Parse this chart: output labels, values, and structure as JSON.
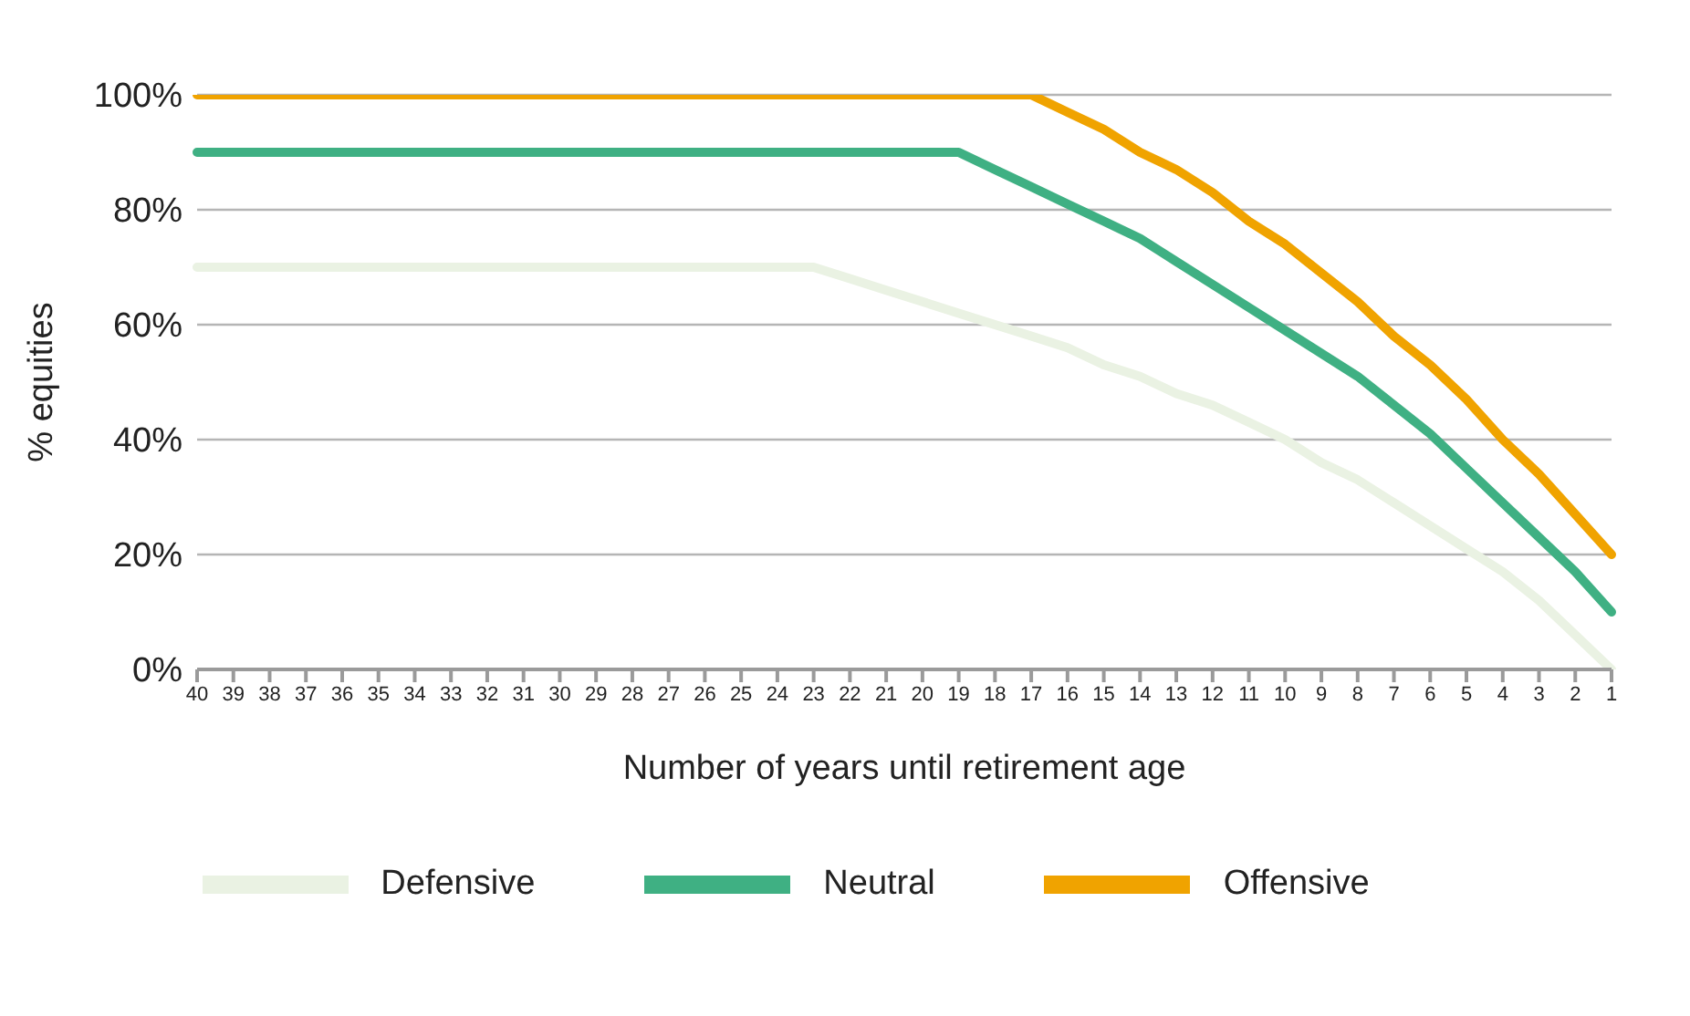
{
  "chart_data": {
    "type": "line",
    "xlabel": "Number of years until retirement age",
    "ylabel": "% equities",
    "categories": [
      "40",
      "39",
      "38",
      "37",
      "36",
      "35",
      "34",
      "33",
      "32",
      "31",
      "30",
      "29",
      "28",
      "27",
      "26",
      "25",
      "24",
      "23",
      "22",
      "21",
      "20",
      "19",
      "18",
      "17",
      "16",
      "15",
      "14",
      "13",
      "12",
      "11",
      "10",
      "9",
      "8",
      "7",
      "6",
      "5",
      "4",
      "3",
      "2",
      "1"
    ],
    "series": [
      {
        "name": "Offensive",
        "color": "#f0a300",
        "values": [
          100,
          100,
          100,
          100,
          100,
          100,
          100,
          100,
          100,
          100,
          100,
          100,
          100,
          100,
          100,
          100,
          100,
          100,
          100,
          100,
          100,
          100,
          100,
          100,
          97,
          94,
          90,
          87,
          83,
          78,
          74,
          69,
          64,
          58,
          53,
          47,
          40,
          34,
          27,
          20
        ]
      },
      {
        "name": "Neutral",
        "color": "#3fb083",
        "values": [
          90,
          90,
          90,
          90,
          90,
          90,
          90,
          90,
          90,
          90,
          90,
          90,
          90,
          90,
          90,
          90,
          90,
          90,
          90,
          90,
          90,
          90,
          87,
          84,
          81,
          78,
          75,
          71,
          67,
          63,
          59,
          55,
          51,
          46,
          41,
          35,
          29,
          23,
          17,
          10
        ]
      },
      {
        "name": "Defensive",
        "color": "#eaf2e3",
        "values": [
          70,
          70,
          70,
          70,
          70,
          70,
          70,
          70,
          70,
          70,
          70,
          70,
          70,
          70,
          70,
          70,
          70,
          70,
          68,
          66,
          64,
          62,
          60,
          58,
          56,
          53,
          51,
          48,
          46,
          43,
          40,
          36,
          33,
          29,
          25,
          21,
          17,
          12,
          6,
          0
        ]
      }
    ],
    "ylim": [
      0,
      100
    ],
    "yticks": [
      {
        "value": 0,
        "label": "0%"
      },
      {
        "value": 20,
        "label": "20%"
      },
      {
        "value": 40,
        "label": "40%"
      },
      {
        "value": 60,
        "label": "60%"
      },
      {
        "value": 80,
        "label": "80%"
      },
      {
        "value": 100,
        "label": "100%"
      }
    ],
    "grid": "y",
    "legend": "bottom",
    "marker": "none",
    "line_style": "solid"
  }
}
